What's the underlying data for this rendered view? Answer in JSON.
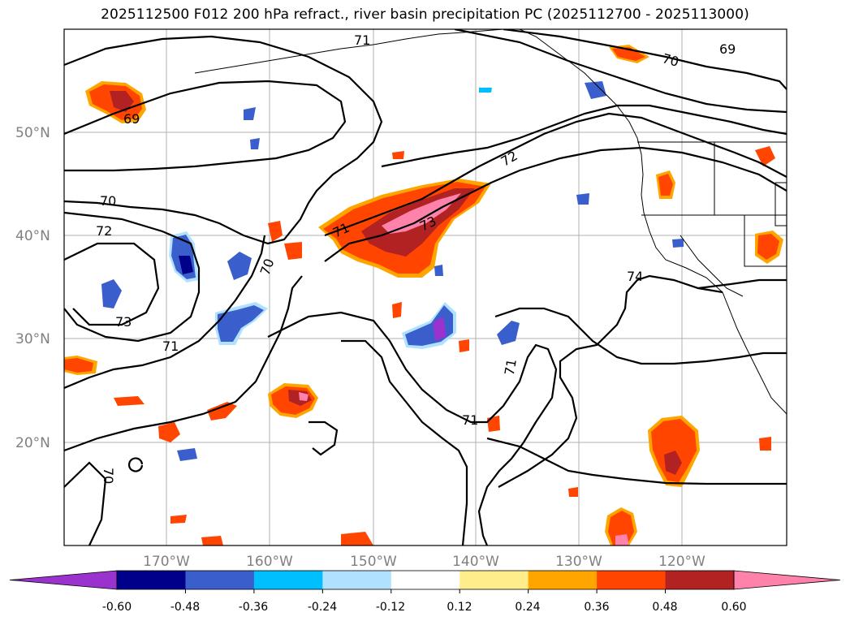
{
  "title": "2025112500 F012 200 hPa refract., river basin precipitation PC (2025112700 - 2025113000)",
  "map": {
    "lat_ticks": [
      "50°N",
      "40°N",
      "30°N",
      "20°N"
    ],
    "lon_ticks": [
      "170°W",
      "160°W",
      "150°W",
      "140°W",
      "130°W",
      "120°W"
    ],
    "grid": true,
    "contour_color": "#000000",
    "contour_labels": [
      "69",
      "70",
      "72",
      "71",
      "73",
      "74",
      "70",
      "71",
      "71",
      "73",
      "70",
      "71",
      "72",
      "69",
      "70",
      "71"
    ]
  },
  "colorbar": {
    "tick_labels": [
      "-0.60",
      "-0.48",
      "-0.36",
      "-0.24",
      "-0.12",
      "0.12",
      "0.24",
      "0.36",
      "0.48",
      "0.60"
    ],
    "colors": [
      "#9a32cd",
      "#00008b",
      "#3a5fcd",
      "#00bfff",
      "#b0e2ff",
      "#ffffff",
      "#ffec8b",
      "#ffa500",
      "#ff4500",
      "#b22222",
      "#ff82ab"
    ],
    "extend": "both"
  }
}
